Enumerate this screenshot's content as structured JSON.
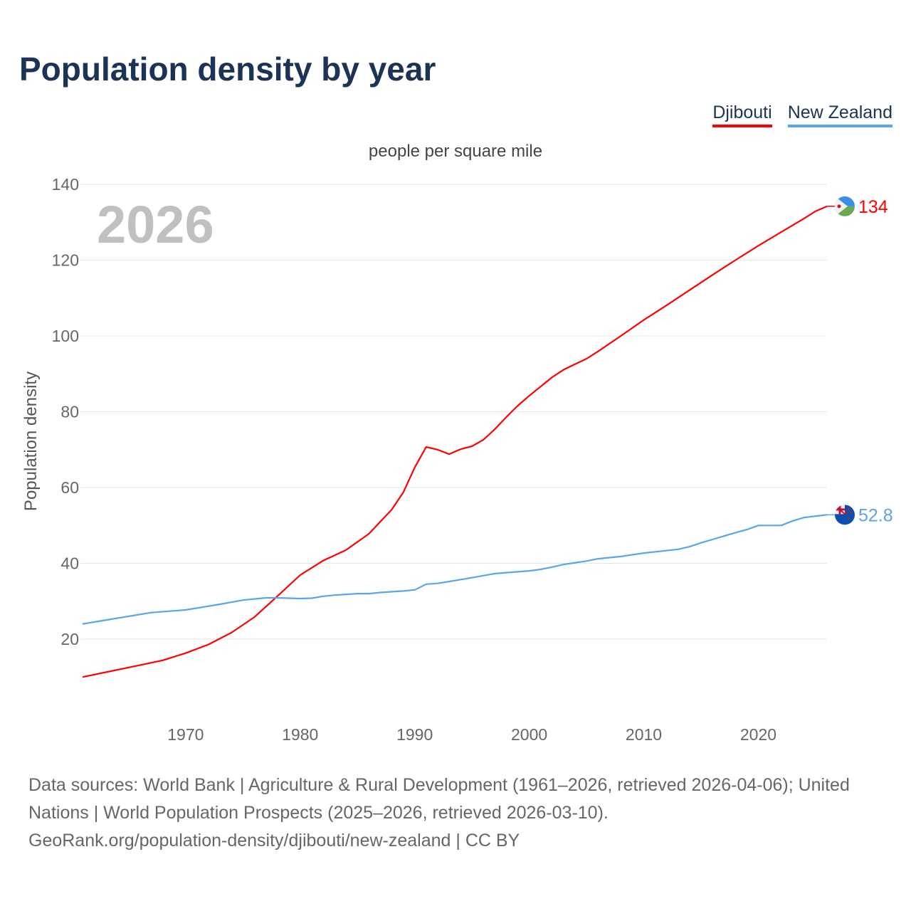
{
  "chart_data": {
    "type": "line",
    "title": "Population density by year",
    "subtitle": "people per square mile",
    "ylabel": "Population density",
    "xlabel": "",
    "year_watermark": "2026",
    "xlim": [
      1961,
      2026
    ],
    "ylim": [
      0,
      140
    ],
    "grid": true,
    "legend_position": "top-right",
    "x_ticks": [
      1970,
      1980,
      1990,
      2000,
      2010,
      2020
    ],
    "y_ticks": [
      20,
      40,
      60,
      80,
      100,
      120,
      140
    ],
    "series": [
      {
        "name": "Djibouti",
        "color": "#ff0000",
        "end_label": "134",
        "flag": "djibouti-flag",
        "points": [
          [
            1961,
            10.0
          ],
          [
            1965,
            12.5
          ],
          [
            1968,
            14.4
          ],
          [
            1970,
            16.3
          ],
          [
            1972,
            18.6
          ],
          [
            1974,
            21.7
          ],
          [
            1976,
            25.8
          ],
          [
            1978,
            31.3
          ],
          [
            1980,
            36.9
          ],
          [
            1982,
            40.7
          ],
          [
            1984,
            43.5
          ],
          [
            1986,
            47.8
          ],
          [
            1988,
            54.2
          ],
          [
            1989,
            58.7
          ],
          [
            1990,
            65.3
          ],
          [
            1991,
            70.7
          ],
          [
            1992,
            70.0
          ],
          [
            1993,
            68.8
          ],
          [
            1994,
            70.1
          ],
          [
            1995,
            70.9
          ],
          [
            1996,
            72.6
          ],
          [
            1997,
            75.4
          ],
          [
            1998,
            78.6
          ],
          [
            1999,
            81.6
          ],
          [
            2000,
            84.2
          ],
          [
            2002,
            89.1
          ],
          [
            2003,
            91.1
          ],
          [
            2005,
            94.0
          ],
          [
            2006,
            95.9
          ],
          [
            2008,
            100.0
          ],
          [
            2010,
            104.2
          ],
          [
            2012,
            108.1
          ],
          [
            2014,
            112.1
          ],
          [
            2016,
            116.1
          ],
          [
            2018,
            120.0
          ],
          [
            2020,
            123.8
          ],
          [
            2022,
            127.4
          ],
          [
            2024,
            131.0
          ],
          [
            2025,
            132.9
          ],
          [
            2026,
            134.2
          ]
        ]
      },
      {
        "name": "New Zealand",
        "color": "#5ba4ea",
        "end_label": "52.8",
        "flag": "new-zealand-flag",
        "points": [
          [
            1961,
            24.0
          ],
          [
            1962,
            24.5
          ],
          [
            1965,
            26.0
          ],
          [
            1967,
            27.0
          ],
          [
            1970,
            27.7
          ],
          [
            1973,
            29.2
          ],
          [
            1975,
            30.3
          ],
          [
            1977,
            30.9
          ],
          [
            1978,
            30.9
          ],
          [
            1980,
            30.7
          ],
          [
            1981,
            30.8
          ],
          [
            1982,
            31.3
          ],
          [
            1983,
            31.6
          ],
          [
            1985,
            32.0
          ],
          [
            1986,
            32.0
          ],
          [
            1987,
            32.3
          ],
          [
            1988,
            32.5
          ],
          [
            1989,
            32.7
          ],
          [
            1990,
            33.0
          ],
          [
            1991,
            34.5
          ],
          [
            1992,
            34.7
          ],
          [
            1995,
            36.2
          ],
          [
            1997,
            37.3
          ],
          [
            2000,
            38.0
          ],
          [
            2001,
            38.4
          ],
          [
            2002,
            39.0
          ],
          [
            2003,
            39.7
          ],
          [
            2005,
            40.6
          ],
          [
            2006,
            41.2
          ],
          [
            2008,
            41.8
          ],
          [
            2010,
            42.7
          ],
          [
            2013,
            43.7
          ],
          [
            2014,
            44.4
          ],
          [
            2015,
            45.4
          ],
          [
            2016,
            46.3
          ],
          [
            2018,
            48.1
          ],
          [
            2019,
            48.9
          ],
          [
            2020,
            50.0
          ],
          [
            2022,
            50.0
          ],
          [
            2023,
            51.2
          ],
          [
            2024,
            52.1
          ],
          [
            2026,
            52.8
          ]
        ]
      }
    ]
  },
  "footer": {
    "line1": "Data sources: World Bank | Agriculture & Rural Development (1961–2026, retrieved 2026-04-06); United Nations | World Population Prospects (2025–2026, retrieved 2026-03-10).",
    "line2": "GeoRank.org/population-density/djibouti/new-zealand | CC BY"
  }
}
